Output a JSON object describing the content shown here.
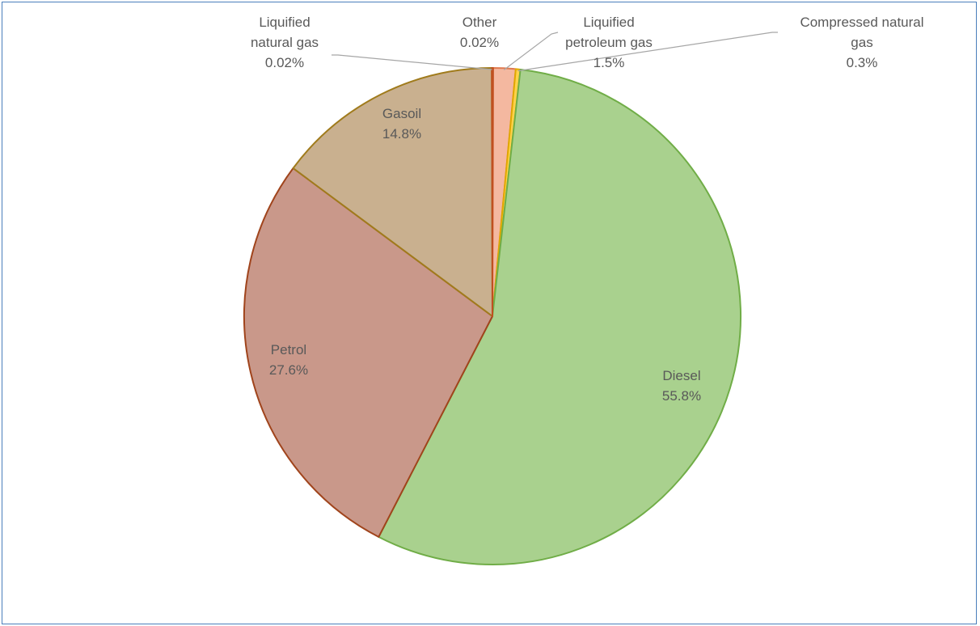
{
  "chart_data": {
    "type": "pie",
    "title": "",
    "start_angle_deg": 0,
    "direction": "clockwise",
    "slices": [
      {
        "name": "Liquified petroleum gas",
        "value": 1.5,
        "label": [
          "Liquified",
          "petroleum gas",
          "1.5%"
        ],
        "color": "#f4b8a0",
        "stroke": "#e07a50",
        "callout": true
      },
      {
        "name": "Compressed natural gas",
        "value": 0.3,
        "label": [
          "Compressed natural",
          "gas",
          "0.3%"
        ],
        "color": "#ffd24a",
        "stroke": "#e0a800",
        "callout": true
      },
      {
        "name": "Diesel",
        "value": 55.8,
        "label": [
          "Diesel",
          "55.8%"
        ],
        "color": "#a9d18e",
        "stroke": "#70ad47",
        "callout": false
      },
      {
        "name": "Petrol",
        "value": 27.6,
        "label": [
          "Petrol",
          "27.6%"
        ],
        "color": "#c9988a",
        "stroke": "#a0441c",
        "callout": false
      },
      {
        "name": "Gasoil",
        "value": 14.8,
        "label": [
          "Gasoil",
          "14.8%"
        ],
        "color": "#c9b08f",
        "stroke": "#a07b1c",
        "callout": false
      },
      {
        "name": "Liquified natural gas",
        "value": 0.02,
        "label": [
          "Liquified",
          "natural gas",
          "0.02%"
        ],
        "color": "#e8a080",
        "stroke": "#c05020",
        "callout": true
      },
      {
        "name": "Other",
        "value": 0.02,
        "label": [
          "Other",
          "0.02%"
        ],
        "color": "#f0b090",
        "stroke": "#c05020",
        "callout": true
      }
    ]
  }
}
